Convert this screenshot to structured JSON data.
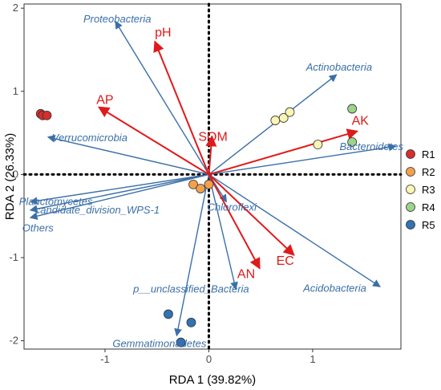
{
  "chart_data": {
    "type": "scatter",
    "title": "",
    "xlabel": "RDA 1 (39.82%)",
    "ylabel": "RDA 2 (26.33%)",
    "xlim": [
      -1.78,
      1.85
    ],
    "ylim": [
      -2.1,
      2.05
    ],
    "x_ticks": [
      -1,
      0,
      1
    ],
    "y_ticks": [
      -2,
      -1,
      0,
      1,
      2
    ],
    "grid": false,
    "zero_lines": "dotted",
    "legend_position": "right",
    "sites": [
      {
        "name": "R1",
        "color": "#d62e2e",
        "points": [
          [
            -1.62,
            0.73
          ],
          [
            -1.6,
            0.71
          ],
          [
            -1.56,
            0.71
          ]
        ]
      },
      {
        "name": "R2",
        "color": "#f4a04e",
        "points": [
          [
            -0.15,
            -0.12
          ],
          [
            -0.08,
            -0.17
          ],
          [
            0.0,
            -0.12
          ]
        ]
      },
      {
        "name": "R3",
        "color": "#fbf5b5",
        "points": [
          [
            0.64,
            0.65
          ],
          [
            0.72,
            0.68
          ],
          [
            0.78,
            0.75
          ],
          [
            1.05,
            0.36
          ]
        ]
      },
      {
        "name": "R4",
        "color": "#9dd38b",
        "points": [
          [
            1.38,
            0.79
          ],
          [
            1.38,
            0.39
          ]
        ]
      },
      {
        "name": "R5",
        "color": "#3173b4",
        "points": [
          [
            -0.39,
            -1.68
          ],
          [
            -0.17,
            -1.78
          ],
          [
            -0.27,
            -2.02
          ]
        ]
      }
    ],
    "species_arrows": {
      "color": "#3a6fa8",
      "items": [
        {
          "name": "Proteobacteria",
          "x": -0.9,
          "y": 1.84
        },
        {
          "name": "Actinobacteria",
          "x": 1.23,
          "y": 1.2
        },
        {
          "name": "Verrucomicrobia",
          "x": -1.55,
          "y": 0.45
        },
        {
          "name": "Bacteroidetes",
          "x": 1.8,
          "y": 0.34
        },
        {
          "name": "Planctomycetes",
          "x": -1.72,
          "y": -0.33
        },
        {
          "name": "candidate_division_WPS-1",
          "x": -1.72,
          "y": -0.43
        },
        {
          "name": "Others",
          "x": -1.72,
          "y": -0.52
        },
        {
          "name": "Chloroflexi",
          "x": 0.17,
          "y": -0.33
        },
        {
          "name": "p__unclassified_Bacteria",
          "x": 0.26,
          "y": -1.38
        },
        {
          "name": "Acidobacteria",
          "x": 1.65,
          "y": -1.35
        },
        {
          "name": "Gemmatimonadetes",
          "x": -0.31,
          "y": -1.94
        }
      ]
    },
    "env_arrows": {
      "color": "#e01a1a",
      "items": [
        {
          "name": "pH",
          "x": -0.52,
          "y": 1.6
        },
        {
          "name": "AP",
          "x": -1.06,
          "y": 0.81
        },
        {
          "name": "SOM",
          "x": 0.03,
          "y": 0.46
        },
        {
          "name": "AK",
          "x": 1.43,
          "y": 0.52
        },
        {
          "name": "AN",
          "x": 0.49,
          "y": -1.13
        },
        {
          "name": "EC",
          "x": 0.82,
          "y": -0.97
        }
      ]
    }
  }
}
